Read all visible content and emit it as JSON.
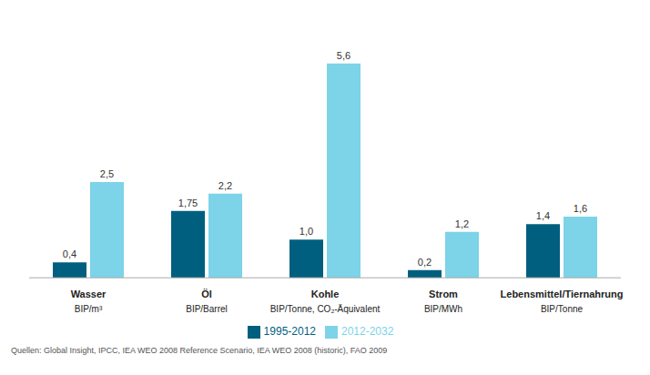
{
  "chart_data": {
    "type": "bar",
    "categories": [
      "Wasser\nBIP/m³",
      "Öl\nBIP/Barrel",
      "Kohle\nBIP/Tonne, CO₂-Äquivalent",
      "Strom\nBIP/MWh",
      "Lebensmittel/Tiernahrung\nBIP/Tonne"
    ],
    "series": [
      {
        "name": "1995-2012",
        "color": "#005f7f",
        "values": [
          0.4,
          1.75,
          1.0,
          0.2,
          1.4
        ],
        "value_labels": [
          "0,4",
          "1,75",
          "1,0",
          "0,2",
          "1,4"
        ]
      },
      {
        "name": "2012-2032",
        "color": "#7dd3e8",
        "values": [
          2.5,
          2.2,
          5.6,
          1.2,
          1.6
        ],
        "value_labels": [
          "2,5",
          "2,2",
          "5,6",
          "1,2",
          "1,6"
        ]
      }
    ],
    "ylim": [
      0,
      6.5
    ],
    "data_labels": true,
    "tick_labels": "x",
    "grid": false,
    "legend": "bottom",
    "annotations": [
      "Quellen: Global Insight, IPCC, IEA WEO 2008 Reference Scenario, IEA WEO 2008 (historic), FAO 2009"
    ]
  }
}
